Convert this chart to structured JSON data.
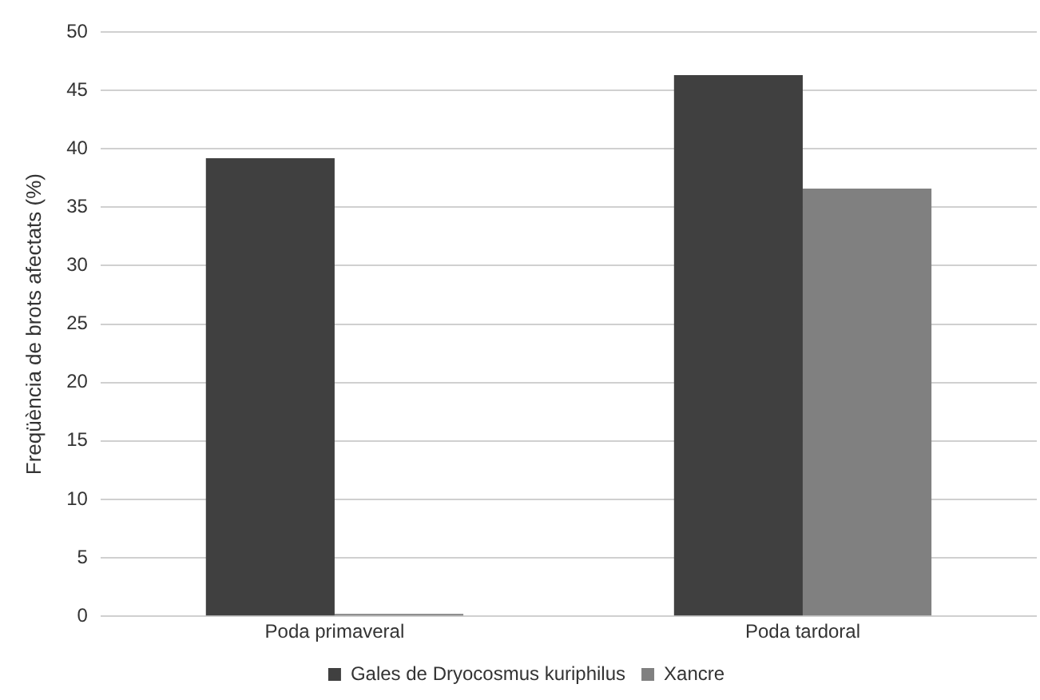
{
  "chart_data": {
    "type": "bar",
    "ylabel": "Freqüència de brots afectats (%)",
    "categories": [
      "Poda primaveral",
      "Poda tardoral"
    ],
    "series": [
      {
        "name": "Gales de Dryocosmus kuriphilus",
        "color": "#404040",
        "values": [
          39.2,
          46.3
        ]
      },
      {
        "name": "Xancre",
        "color": "#808080",
        "values": [
          0.2,
          36.6
        ]
      }
    ],
    "ylim": [
      0,
      50
    ],
    "yticks": [
      0,
      5,
      10,
      15,
      20,
      25,
      30,
      35,
      40,
      45,
      50
    ],
    "grid": "y",
    "legend": "bottom"
  }
}
